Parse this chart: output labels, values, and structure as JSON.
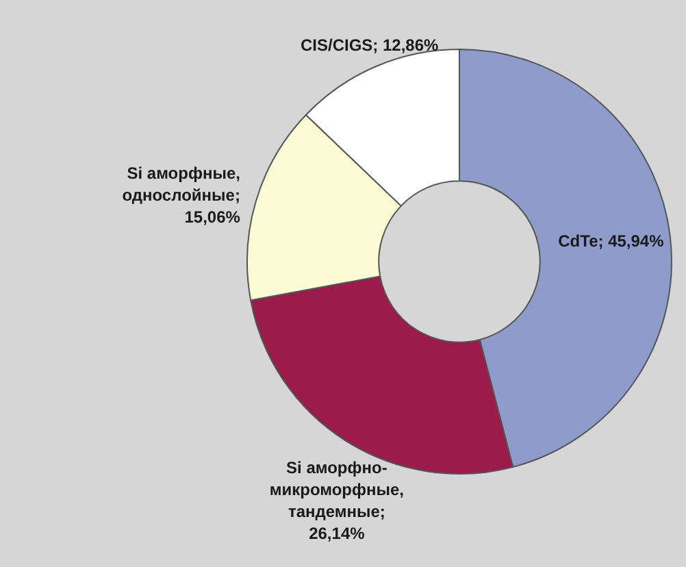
{
  "chart_data": {
    "type": "donut",
    "categories": [
      "CdTe",
      "Si аморфно-микроморфные, тандемные",
      "Si аморфные, однослойные",
      "CIS/CIGS"
    ],
    "values": [
      45.94,
      26.14,
      15.06,
      12.86
    ],
    "colors": [
      "#8e9ccc",
      "#9b1b4b",
      "#fafad4",
      "#ffffff"
    ],
    "value_labels": [
      "; 45,94%",
      "; 26,14%",
      "; 15,06%",
      "; 12,86%"
    ]
  }
}
